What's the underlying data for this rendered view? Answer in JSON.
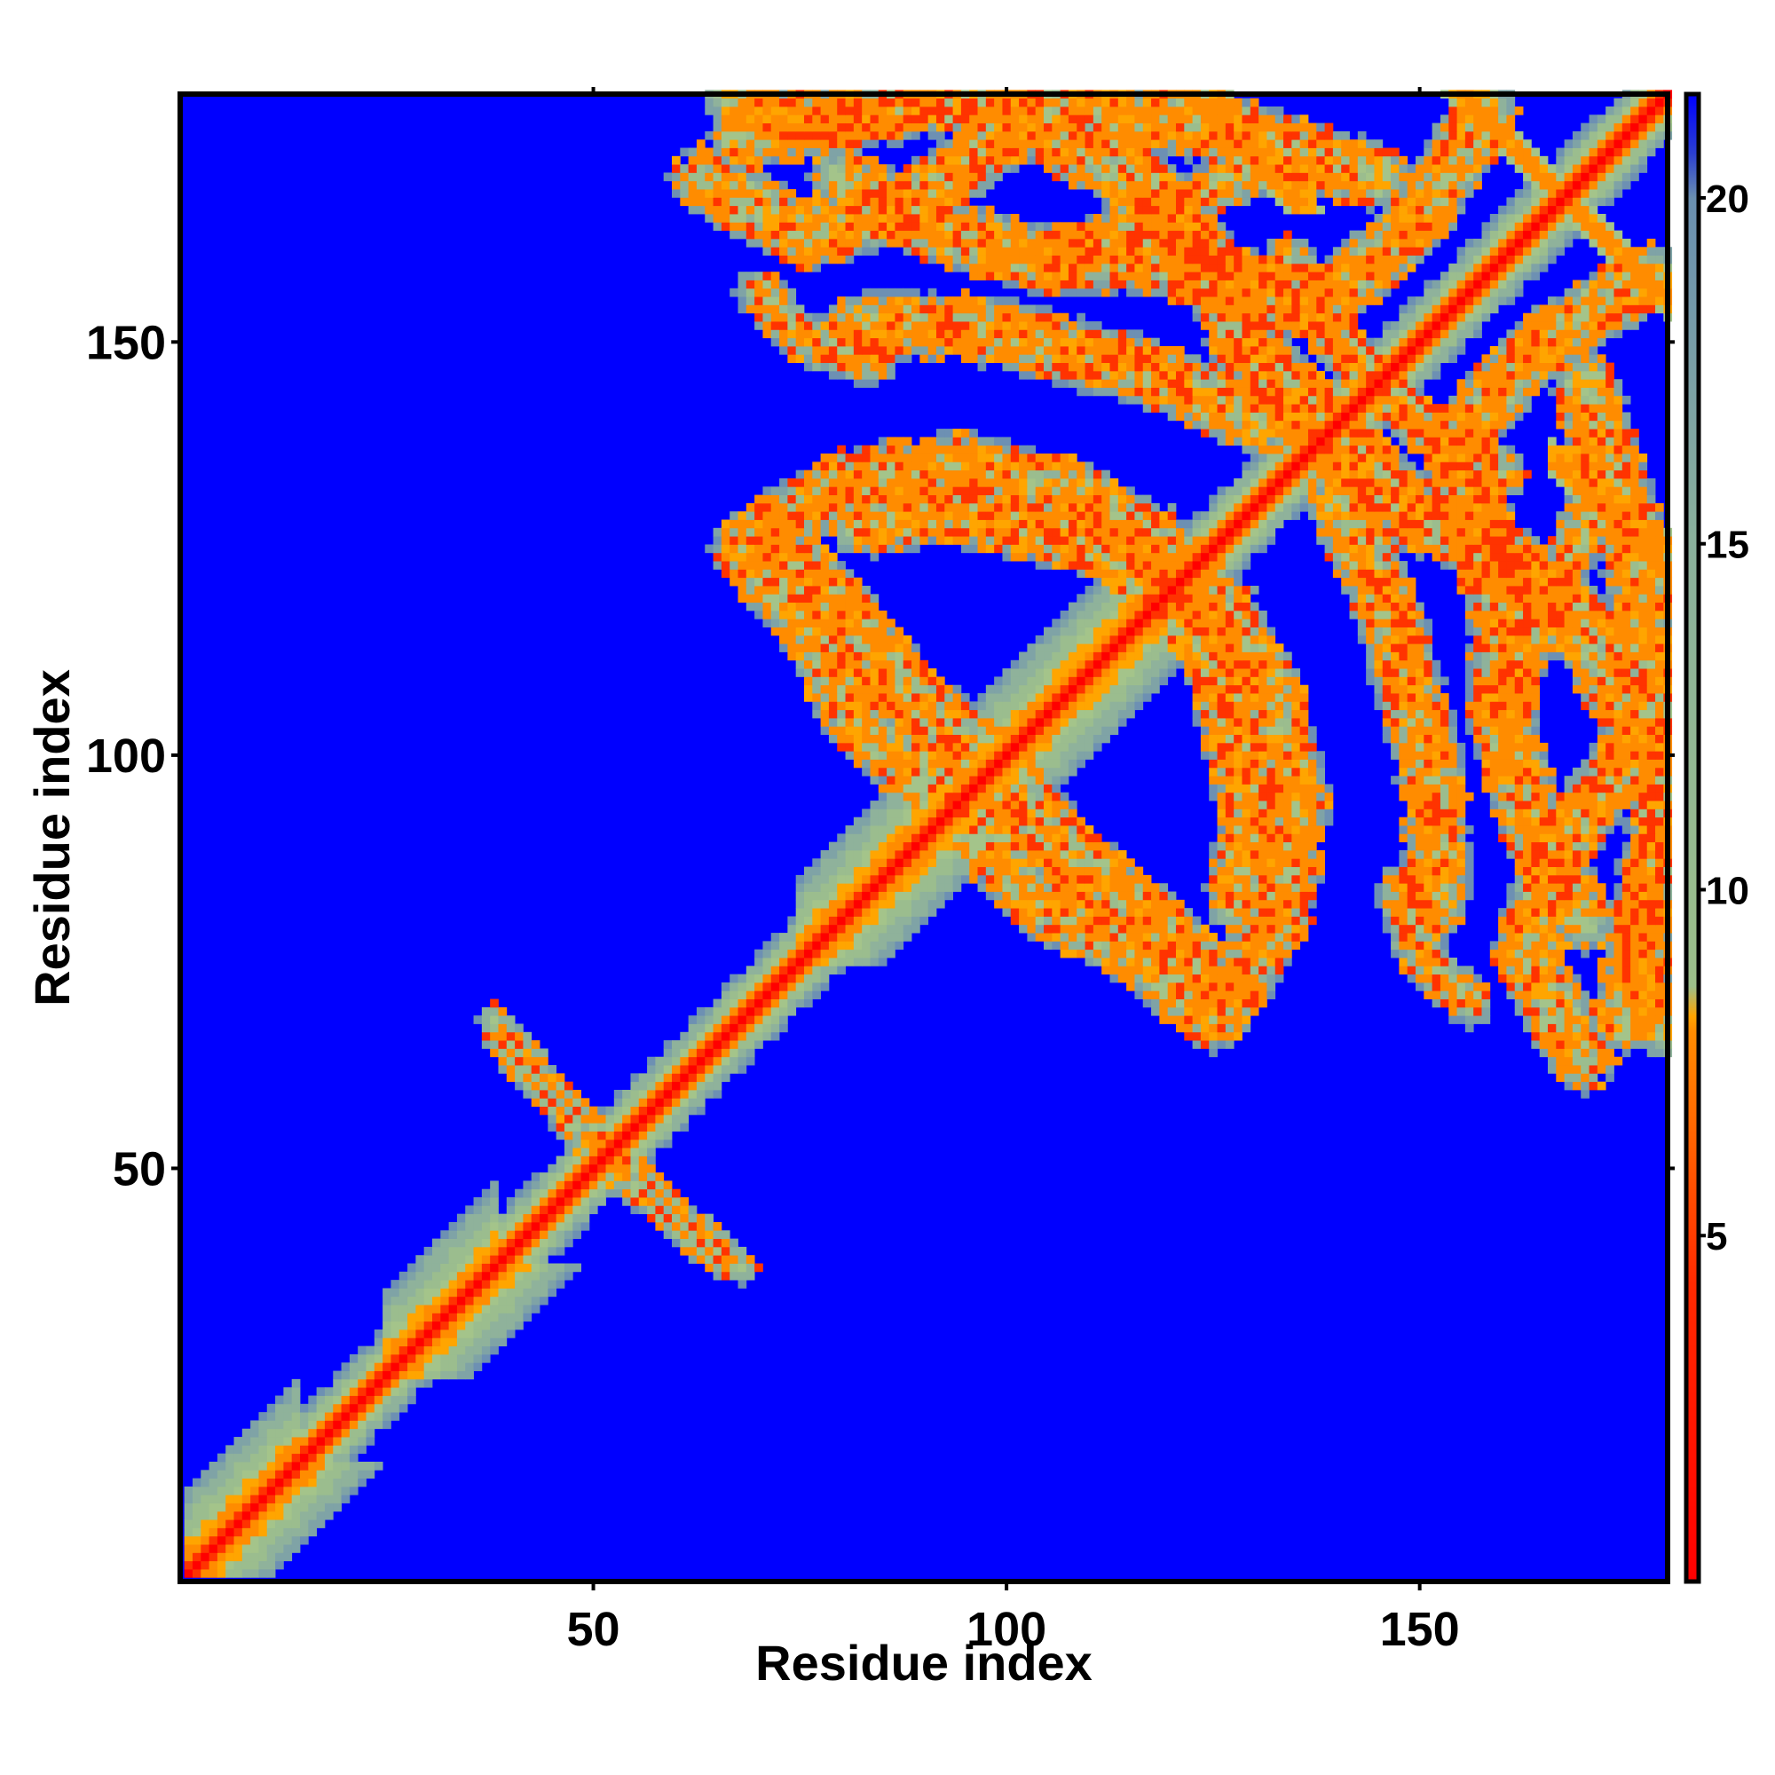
{
  "chart_data": {
    "type": "heatmap",
    "title": "",
    "xlabel": "Residue index",
    "ylabel": "Residue index",
    "xlim": [
      1,
      180
    ],
    "ylim": [
      1,
      180
    ],
    "xticks": [
      50,
      100,
      150
    ],
    "yticks": [
      50,
      100,
      150
    ],
    "colorbar": {
      "range": [
        0,
        21.5
      ],
      "ticks": [
        5,
        10,
        15,
        20
      ],
      "colors": [
        "#ff0000",
        "#ff8c00",
        "#9cbf8a",
        "#6a8fb0",
        "#0000ff"
      ],
      "stops": [
        0,
        8.0,
        10.0,
        20.0,
        21.5
      ]
    },
    "background_value": 21.5,
    "grid": false,
    "description_features": {
      "diagonal": {
        "from": 1,
        "to": 180,
        "value": 0
      },
      "helical_segments": [
        [
          1,
          14
        ],
        [
          25,
          38
        ],
        [
          75,
          95
        ],
        [
          96,
          120
        ]
      ],
      "antiparallel_contacts": [
        {
          "i_from": 125,
          "i_to": 137,
          "j_from": 180,
          "j_to": 168,
          "value": 6
        },
        {
          "i_from": 155,
          "i_to": 180,
          "j_from": 180,
          "j_to": 155,
          "value": 5
        },
        {
          "i_from": 166,
          "i_to": 180,
          "j_from": 136,
          "j_to": 122,
          "value": 5
        }
      ]
    }
  }
}
